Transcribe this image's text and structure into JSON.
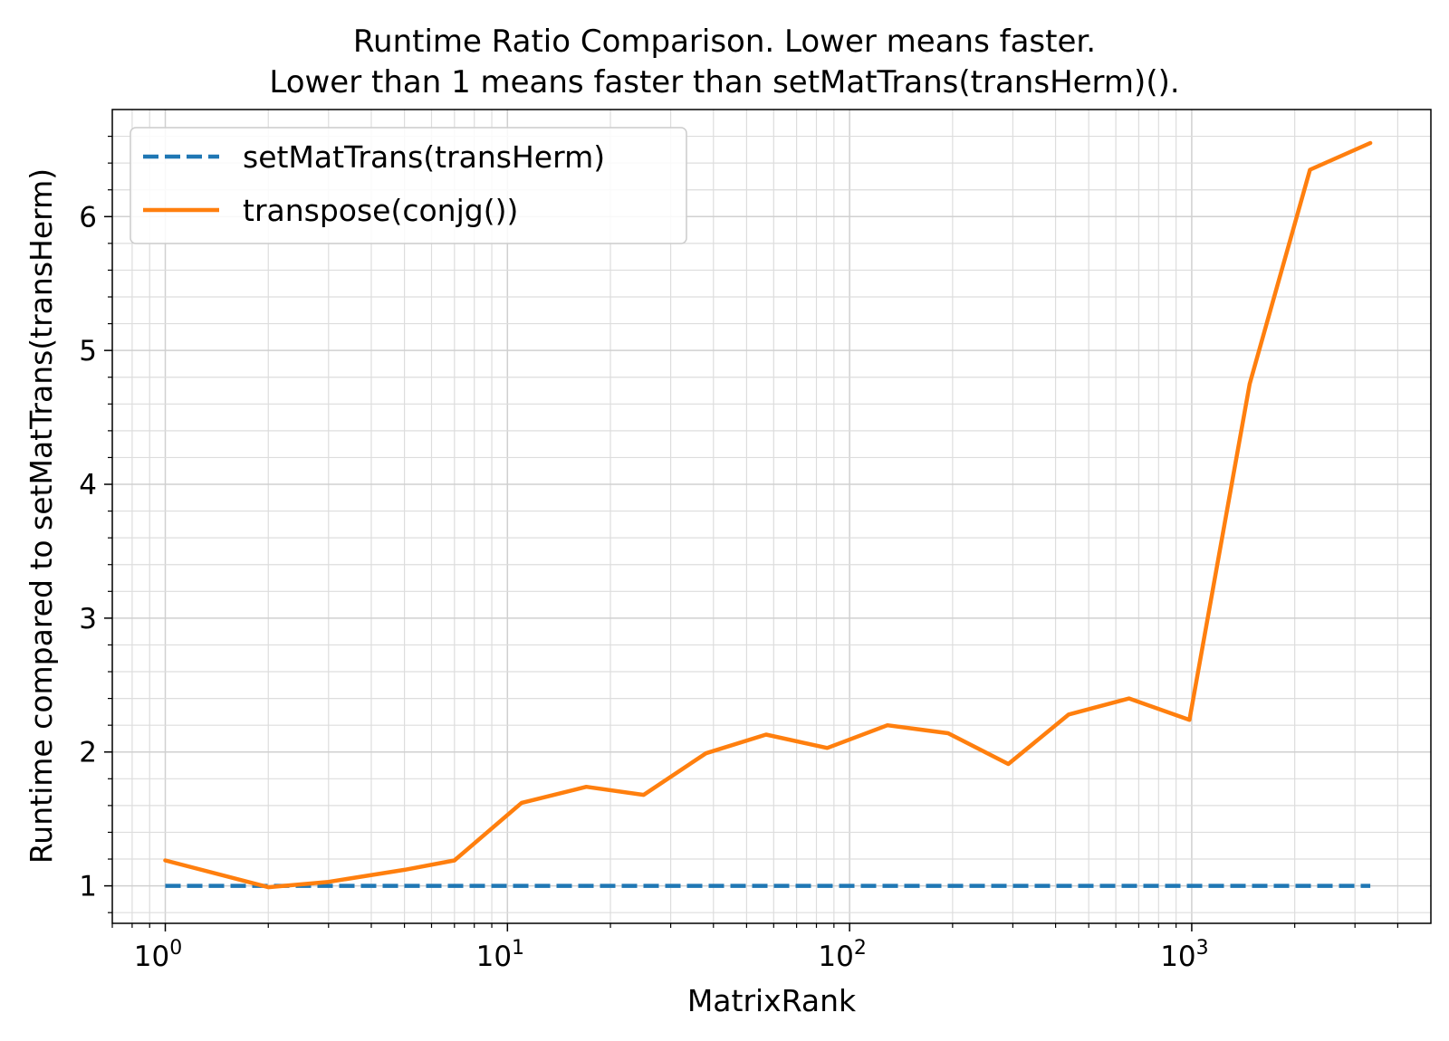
{
  "chart_data": {
    "type": "line",
    "title_line1": "Runtime Ratio Comparison. Lower means faster.",
    "title_line2": "Lower than 1 means faster than setMatTrans(transHerm)().",
    "xlabel": "MatrixRank",
    "ylabel": "Runtime compared to setMatTrans(transHerm)",
    "xscale": "log",
    "xlim": [
      0.7,
      5000
    ],
    "ylim": [
      0.72,
      6.8
    ],
    "grid": true,
    "legend_position": "top-left",
    "x_tick_labels": [
      "10^0",
      "10^1",
      "10^2",
      "10^3"
    ],
    "y_tick_labels": [
      "1",
      "2",
      "3",
      "4",
      "5",
      "6"
    ],
    "series": [
      {
        "name": "setMatTrans(transHerm)",
        "color": "#1f77b4",
        "style": "dashed",
        "x": [
          1,
          2,
          3,
          5,
          7,
          11,
          17,
          25,
          38,
          57,
          86,
          129,
          194,
          291,
          437,
          656,
          985,
          1477,
          2216,
          3325
        ],
        "y": [
          1,
          1,
          1,
          1,
          1,
          1,
          1,
          1,
          1,
          1,
          1,
          1,
          1,
          1,
          1,
          1,
          1,
          1,
          1,
          1
        ]
      },
      {
        "name": "transpose(conjg())",
        "color": "#ff7f0e",
        "style": "solid",
        "x": [
          1,
          2,
          3,
          5,
          7,
          11,
          17,
          25,
          38,
          57,
          86,
          129,
          194,
          291,
          437,
          656,
          985,
          1477,
          2216,
          3325
        ],
        "y": [
          1.19,
          0.99,
          1.03,
          1.12,
          1.19,
          1.62,
          1.74,
          1.68,
          1.99,
          2.13,
          2.03,
          2.2,
          2.14,
          1.91,
          2.28,
          2.4,
          2.24,
          4.75,
          6.35,
          6.55
        ]
      }
    ]
  }
}
